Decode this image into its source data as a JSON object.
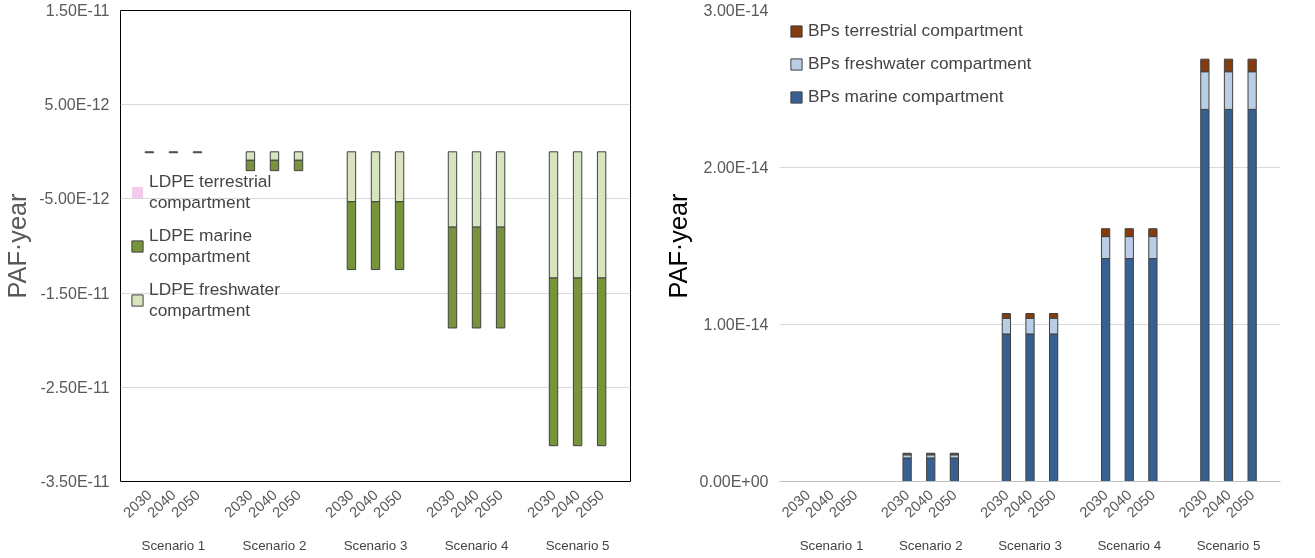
{
  "chart_data": [
    {
      "type": "bar",
      "stacked": true,
      "ylabel": "PAF·year",
      "categories": [
        "2030",
        "2040",
        "2050",
        "2030",
        "2040",
        "2050",
        "2030",
        "2040",
        "2050",
        "2030",
        "2040",
        "2050",
        "2030",
        "2040",
        "2050"
      ],
      "annotations": [
        "Scenario 1",
        "Scenario 2",
        "Scenario 3",
        "Scenario 4",
        "Scenario 5"
      ],
      "series": [
        {
          "name": "LDPE freshwater compartment",
          "color": "#d7e4bd",
          "values": [
            null,
            null,
            null,
            -9e-13,
            -9e-13,
            -9e-13,
            -5.3e-12,
            -5.3e-12,
            -5.3e-12,
            -8e-12,
            -8e-12,
            -8e-12,
            -1.34e-11,
            -1.34e-11,
            -1.34e-11
          ]
        },
        {
          "name": "LDPE marine compartment",
          "color": "#77933c",
          "values": [
            -1e-13,
            -1e-13,
            -1e-13,
            -1.1e-12,
            -1.1e-12,
            -1.1e-12,
            -7.2e-12,
            -7.2e-12,
            -7.2e-12,
            -1.07e-11,
            -1.07e-11,
            -1.07e-11,
            -1.78e-11,
            -1.78e-11,
            -1.78e-11
          ]
        },
        {
          "name": "LDPE terrestrial compartment",
          "color": "#f2ccec",
          "values": [
            0,
            0,
            0,
            0,
            0,
            0,
            0,
            0,
            0,
            0,
            0,
            0,
            0,
            0,
            0
          ]
        }
      ],
      "ylim": [
        -3.5e-11,
        1.5e-11
      ],
      "yticks": [
        {
          "value": 1.5e-11,
          "label": "1.50E-11"
        },
        {
          "value": 5e-12,
          "label": "5.00E-12"
        },
        {
          "value": -5e-12,
          "label": "-5.00E-12"
        },
        {
          "value": -1.5e-11,
          "label": "-1.50E-11"
        },
        {
          "value": -2.5e-11,
          "label": "-2.50E-11"
        },
        {
          "value": -3.5e-11,
          "label": "-3.50E-11"
        }
      ],
      "grid": "y",
      "legend": "left"
    },
    {
      "type": "bar",
      "stacked": true,
      "ylabel": "PAF·year",
      "categories": [
        "2030",
        "2040",
        "2050",
        "2030",
        "2040",
        "2050",
        "2030",
        "2040",
        "2050",
        "2030",
        "2040",
        "2050",
        "2030",
        "2040",
        "2050"
      ],
      "annotations": [
        "Scenario 1",
        "Scenario 2",
        "Scenario 3",
        "Scenario 4",
        "Scenario 5"
      ],
      "series": [
        {
          "name": "BPs marine compartment",
          "color": "#376092",
          "values": [
            null,
            null,
            null,
            1.5e-15,
            1.5e-15,
            1.5e-15,
            9.4e-15,
            9.4e-15,
            9.4e-15,
            1.42e-14,
            1.42e-14,
            1.42e-14,
            2.37e-14,
            2.37e-14,
            2.37e-14
          ]
        },
        {
          "name": "BPs freshwater compartment",
          "color": "#b9cde5",
          "values": [
            null,
            null,
            null,
            2e-16,
            2e-16,
            2e-16,
            1e-15,
            1e-15,
            1e-15,
            1.4e-15,
            1.4e-15,
            1.4e-15,
            2.4e-15,
            2.4e-15,
            2.4e-15
          ]
        },
        {
          "name": "BPs terrestrial compartment",
          "color": "#843c0c",
          "values": [
            null,
            null,
            null,
            1e-16,
            1e-16,
            1e-16,
            3e-16,
            3e-16,
            3e-16,
            5e-16,
            5e-16,
            5e-16,
            8e-16,
            8e-16,
            8e-16
          ]
        }
      ],
      "ylim": [
        0,
        3e-14
      ],
      "yticks": [
        {
          "value": 0,
          "label": "0.00E+00"
        },
        {
          "value": 1e-14,
          "label": "1.00E-14"
        },
        {
          "value": 2e-14,
          "label": "2.00E-14"
        },
        {
          "value": 3e-14,
          "label": "3.00E-14"
        }
      ],
      "grid": "y",
      "legend": "top left"
    }
  ]
}
